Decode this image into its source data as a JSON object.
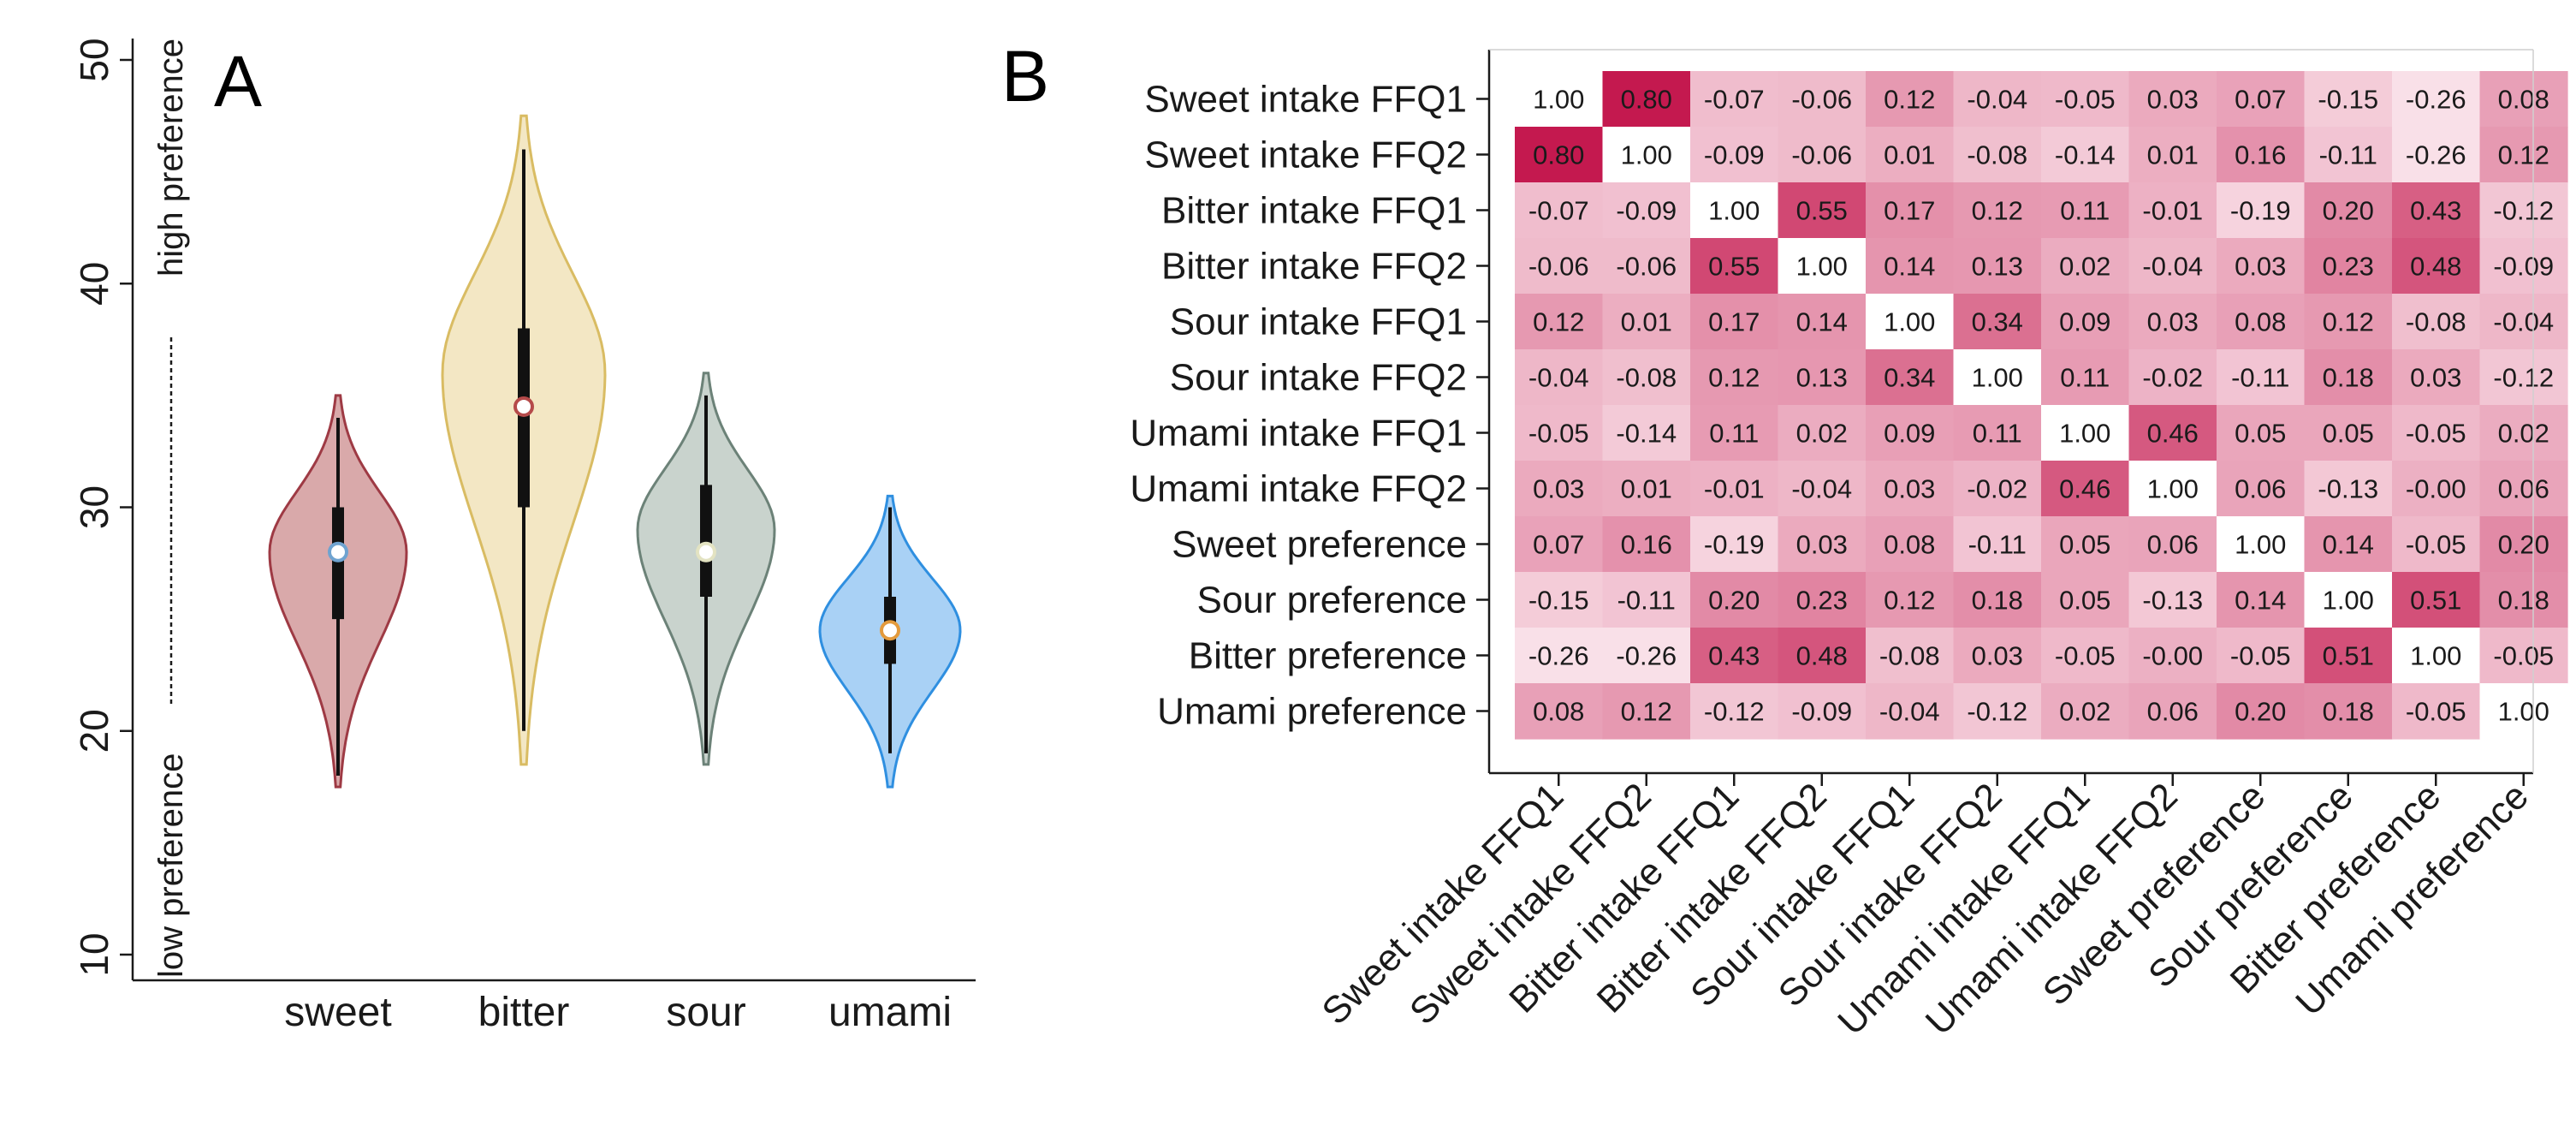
{
  "panel_a_letter": "A",
  "panel_b_letter": "B",
  "preference_axis": {
    "low_label": "low preference",
    "high_label": "high preference"
  },
  "colors": {
    "sweet_fill": "#d9a9aa",
    "sweet_stroke": "#9e3a44",
    "sweet_median": "#6fa3d0",
    "bitter_fill": "#f3e7c4",
    "bitter_stroke": "#d9bc63",
    "bitter_median": "#b54a4a",
    "sour_fill": "#c9d3cd",
    "sour_stroke": "#6c8278",
    "sour_median": "#e3e3c2",
    "umami_fill": "#a9d1f5",
    "umami_stroke": "#2f8fe0",
    "umami_median": "#e39a3c",
    "heatmap_low": "#fbe8ee",
    "heatmap_high": "#c4194f",
    "heatmap_diag": "#ffffff"
  },
  "chart_data": [
    {
      "type": "violin",
      "categories": [
        "sweet",
        "bitter",
        "sour",
        "umami"
      ],
      "ylim": [
        10,
        50
      ],
      "yticks": [
        10,
        20,
        30,
        40,
        50
      ],
      "series": [
        {
          "category": "sweet",
          "min": 18,
          "q1": 25,
          "median": 28,
          "q3": 30,
          "max": 34,
          "violin_low": 17.5,
          "violin_high": 35,
          "mode": 28
        },
        {
          "category": "bitter",
          "min": 20,
          "q1": 30,
          "median": 34.5,
          "q3": 38,
          "max": 46,
          "violin_low": 18.5,
          "violin_high": 47.5,
          "mode": 36
        },
        {
          "category": "sour",
          "min": 19,
          "q1": 26,
          "median": 28,
          "q3": 31,
          "max": 35,
          "violin_low": 18.5,
          "violin_high": 36,
          "mode": 29
        },
        {
          "category": "umami",
          "min": 19,
          "q1": 23,
          "median": 24.5,
          "q3": 26,
          "max": 30,
          "violin_low": 17.5,
          "violin_high": 30.5,
          "mode": 24.5
        }
      ]
    },
    {
      "type": "heatmap",
      "labels": [
        "Sweet intake FFQ1",
        "Sweet intake FFQ2",
        "Bitter intake FFQ1",
        "Bitter intake FFQ2",
        "Sour intake FFQ1",
        "Sour intake FFQ2",
        "Umami intake FFQ1",
        "Umami intake FFQ2",
        "Sweet preference",
        "Sour preference",
        "Bitter preference",
        "Umami preference"
      ],
      "values": [
        [
          "1.00",
          "0.80",
          "-0.07",
          "-0.06",
          "0.12",
          "-0.04",
          "-0.05",
          "0.03",
          "0.07",
          "-0.15",
          "-0.26",
          "0.08"
        ],
        [
          "0.80",
          "1.00",
          "-0.09",
          "-0.06",
          "0.01",
          "-0.08",
          "-0.14",
          "0.01",
          "0.16",
          "-0.11",
          "-0.26",
          "0.12"
        ],
        [
          "-0.07",
          "-0.09",
          "1.00",
          "0.55",
          "0.17",
          "0.12",
          "0.11",
          "-0.01",
          "-0.19",
          "0.20",
          "0.43",
          "-0.12"
        ],
        [
          "-0.06",
          "-0.06",
          "0.55",
          "1.00",
          "0.14",
          "0.13",
          "0.02",
          "-0.04",
          "0.03",
          "0.23",
          "0.48",
          "-0.09"
        ],
        [
          "0.12",
          "0.01",
          "0.17",
          "0.14",
          "1.00",
          "0.34",
          "0.09",
          "0.03",
          "0.08",
          "0.12",
          "-0.08",
          "-0.04"
        ],
        [
          "-0.04",
          "-0.08",
          "0.12",
          "0.13",
          "0.34",
          "1.00",
          "0.11",
          "-0.02",
          "-0.11",
          "0.18",
          "0.03",
          "-0.12"
        ],
        [
          "-0.05",
          "-0.14",
          "0.11",
          "0.02",
          "0.09",
          "0.11",
          "1.00",
          "0.46",
          "0.05",
          "0.05",
          "-0.05",
          "0.02"
        ],
        [
          "0.03",
          "0.01",
          "-0.01",
          "-0.04",
          "0.03",
          "-0.02",
          "0.46",
          "1.00",
          "0.06",
          "-0.13",
          "-0.00",
          "0.06"
        ],
        [
          "0.07",
          "0.16",
          "-0.19",
          "0.03",
          "0.08",
          "-0.11",
          "0.05",
          "0.06",
          "1.00",
          "0.14",
          "-0.05",
          "0.20"
        ],
        [
          "-0.15",
          "-0.11",
          "0.20",
          "0.23",
          "0.12",
          "0.18",
          "0.05",
          "-0.13",
          "0.14",
          "1.00",
          "0.51",
          "0.18"
        ],
        [
          "-0.26",
          "-0.26",
          "0.43",
          "0.48",
          "-0.08",
          "0.03",
          "-0.05",
          "-0.00",
          "-0.05",
          "0.51",
          "1.00",
          "-0.05"
        ],
        [
          "0.08",
          "0.12",
          "-0.12",
          "-0.09",
          "-0.04",
          "-0.12",
          "0.02",
          "0.06",
          "0.20",
          "0.18",
          "-0.05",
          "1.00"
        ]
      ]
    }
  ]
}
